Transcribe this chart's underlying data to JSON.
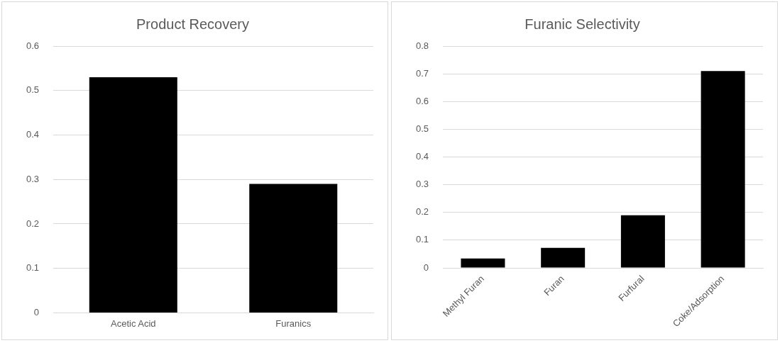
{
  "chart_data": [
    {
      "type": "bar",
      "title": "Product Recovery",
      "categories": [
        "Acetic Acid",
        "Furanics"
      ],
      "values": [
        0.53,
        0.29
      ],
      "color": "#000000",
      "ylim": [
        0,
        0.6
      ],
      "yticks": [
        0,
        0.1,
        0.2,
        0.3,
        0.4,
        0.5,
        0.6
      ],
      "grid": "y",
      "legend": false
    },
    {
      "type": "bar",
      "title": "Furanic Selectivity",
      "categories": [
        "Methyl Furan",
        "Furan",
        "Furfural",
        "Coke/Adsorption"
      ],
      "values": [
        0.034,
        0.072,
        0.19,
        0.71
      ],
      "color": "#000000",
      "ylim": [
        0,
        0.8
      ],
      "yticks": [
        0,
        0.1,
        0.2,
        0.3,
        0.4,
        0.5,
        0.6,
        0.7,
        0.8
      ],
      "grid": "y",
      "legend": false
    }
  ]
}
